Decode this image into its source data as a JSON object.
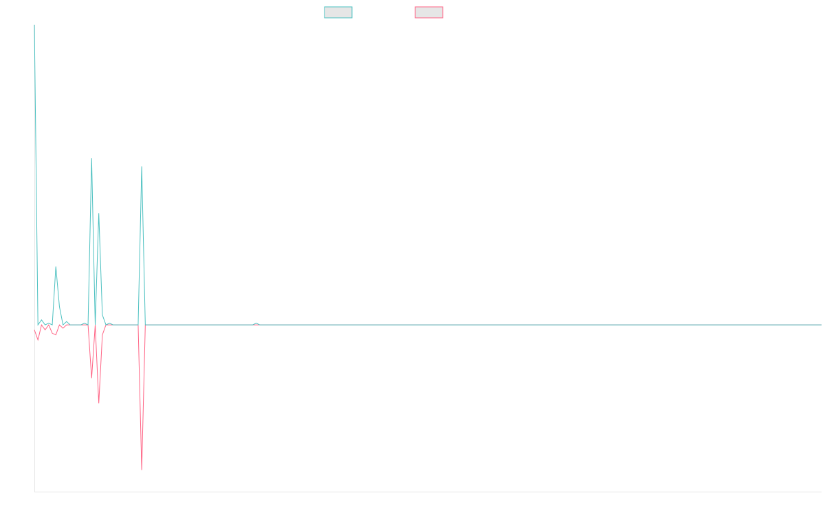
{
  "chart_data": {
    "type": "line",
    "legend": "top-center",
    "grid": false,
    "colors": {
      "series_a": "#4bc0c0",
      "series_b": "#ff6384",
      "axis": "#e6e6e6"
    },
    "ylim": [
      -1.0,
      1.8
    ],
    "x": [
      0,
      1,
      2,
      3,
      4,
      5,
      6,
      7,
      8,
      9,
      10,
      11,
      12,
      13,
      14,
      15,
      16,
      17,
      18,
      19,
      20,
      21,
      22,
      23,
      24,
      25,
      26,
      27,
      28,
      29,
      30,
      31,
      32,
      33,
      34,
      35,
      36,
      37,
      38,
      39,
      40,
      41,
      42,
      43,
      44,
      45,
      46,
      47,
      48,
      49,
      50,
      51,
      52,
      53,
      54,
      55,
      56,
      57,
      58,
      59,
      60,
      61,
      62,
      63,
      64,
      65,
      66,
      67,
      68,
      69,
      70,
      71,
      72,
      73,
      74,
      75,
      76,
      77,
      78,
      79,
      80,
      81,
      82,
      83,
      84,
      85,
      86,
      87,
      88,
      89,
      90,
      91,
      92,
      93,
      94,
      95,
      96,
      97,
      98,
      99,
      100,
      101,
      102,
      103,
      104,
      105,
      106,
      107,
      108,
      109,
      110,
      111,
      112,
      113,
      114,
      115,
      116,
      117,
      118,
      119,
      120,
      121,
      122,
      123,
      124,
      125,
      126,
      127,
      128,
      129,
      130,
      131,
      132,
      133,
      134,
      135,
      136,
      137,
      138,
      139,
      140,
      141,
      142,
      143,
      144,
      145,
      146,
      147,
      148,
      149,
      150,
      151,
      152,
      153,
      154,
      155,
      156,
      157,
      158,
      159,
      160,
      161,
      162,
      163,
      164,
      165,
      166,
      167,
      168,
      169,
      170,
      171,
      172,
      173,
      174,
      175,
      176,
      177,
      178,
      179,
      180,
      181,
      182,
      183,
      184,
      185,
      186,
      187,
      188,
      189,
      190,
      191,
      192,
      193,
      194,
      195,
      196,
      197,
      198,
      199,
      200,
      201,
      202,
      203,
      204,
      205,
      206,
      207,
      208,
      209,
      210,
      211,
      212,
      213,
      214,
      215,
      216,
      217,
      218,
      219,
      220
    ],
    "series": [
      {
        "color": "#4bc0c0",
        "values": [
          1.8,
          0.0,
          0.03,
          0.0,
          0.01,
          0.0,
          0.35,
          0.11,
          0.0,
          0.02,
          0.0,
          0.0,
          0.0,
          0.0,
          0.01,
          0.0,
          1.0,
          0.0,
          0.67,
          0.06,
          0.0,
          0.01,
          0.0,
          0.0,
          0.0,
          0.0,
          0.0,
          0.0,
          0.0,
          0.0,
          0.95,
          0.0,
          0.0,
          0.0,
          0.0,
          0.0,
          0.0,
          0.0,
          0.0,
          0.0,
          0.0,
          0.0,
          0.0,
          0.0,
          0.0,
          0.0,
          0.0,
          0.0,
          0.0,
          0.0,
          0.0,
          0.0,
          0.0,
          0.0,
          0.0,
          0.0,
          0.0,
          0.0,
          0.0,
          0.0,
          0.0,
          0.0,
          0.01,
          0.0,
          0.0,
          0.0,
          0.0,
          0.0,
          0.0,
          0.0,
          0.0,
          0.0,
          0.0,
          0.0,
          0.0,
          0.0,
          0.0,
          0.0,
          0.0,
          0.0,
          0.0,
          0.0,
          0.0,
          0.0,
          0.0,
          0.0,
          0.0,
          0.0,
          0.0,
          0.0,
          0.0,
          0.0,
          0.0,
          0.0,
          0.0,
          0.0,
          0.0,
          0.0,
          0.0,
          0.0,
          0.0,
          0.0,
          0.0,
          0.0,
          0.0,
          0.0,
          0.0,
          0.0,
          0.0,
          0.0,
          0.0,
          0.0,
          0.0,
          0.0,
          0.0,
          0.0,
          0.0,
          0.0,
          0.0,
          0.0,
          0.0,
          0.0,
          0.0,
          0.0,
          0.0,
          0.0,
          0.0,
          0.0,
          0.0,
          0.0,
          0.0,
          0.0,
          0.0,
          0.0,
          0.0,
          0.0,
          0.0,
          0.0,
          0.0,
          0.0,
          0.0,
          0.0,
          0.0,
          0.0,
          0.0,
          0.0,
          0.0,
          0.0,
          0.0,
          0.0,
          0.0,
          0.0,
          0.0,
          0.0,
          0.0,
          0.0,
          0.0,
          0.0,
          0.0,
          0.0,
          0.0,
          0.0,
          0.0,
          0.0,
          0.0,
          0.0,
          0.0,
          0.0,
          0.0,
          0.0,
          0.0,
          0.0,
          0.0,
          0.0,
          0.0,
          0.0,
          0.0,
          0.0,
          0.0,
          0.0,
          0.0,
          0.0,
          0.0,
          0.0,
          0.0,
          0.0,
          0.0,
          0.0,
          0.0,
          0.0,
          0.0,
          0.0,
          0.0,
          0.0,
          0.0,
          0.0,
          0.0,
          0.0,
          0.0,
          0.0,
          0.0,
          0.0,
          0.0,
          0.0,
          0.0,
          0.0,
          0.0,
          0.0,
          0.0,
          0.0,
          0.0,
          0.0,
          0.0,
          0.0,
          0.0,
          0.0,
          0.0,
          0.0,
          0.0,
          0.0,
          0.0
        ]
      },
      {
        "color": "#ff6384",
        "values": [
          -0.03,
          -0.09,
          0.0,
          -0.03,
          0.0,
          -0.05,
          -0.06,
          0.0,
          -0.02,
          0.0,
          0.0,
          0.0,
          0.0,
          0.0,
          0.0,
          0.0,
          -0.32,
          0.0,
          -0.47,
          -0.06,
          0.0,
          0.0,
          0.0,
          0.0,
          0.0,
          0.0,
          0.0,
          0.0,
          0.0,
          0.0,
          -0.87,
          0.0,
          0.0,
          0.0,
          0.0,
          0.0,
          0.0,
          0.0,
          0.0,
          0.0,
          0.0,
          0.0,
          0.0,
          0.0,
          0.0,
          0.0,
          0.0,
          0.0,
          0.0,
          0.0,
          0.0,
          0.0,
          0.0,
          0.0,
          0.0,
          0.0,
          0.0,
          0.0,
          0.0,
          0.0,
          0.0,
          0.0,
          0.0,
          0.0,
          0.0,
          0.0,
          0.0,
          0.0,
          0.0,
          0.0,
          0.0,
          0.0,
          0.0,
          0.0,
          0.0,
          0.0,
          0.0,
          0.0,
          0.0,
          0.0,
          0.0,
          0.0,
          0.0,
          0.0,
          0.0,
          0.0,
          0.0,
          0.0,
          0.0,
          0.0,
          0.0,
          0.0,
          0.0,
          0.0,
          0.0,
          0.0,
          0.0,
          0.0,
          0.0,
          0.0,
          0.0,
          0.0,
          0.0,
          0.0,
          0.0,
          0.0,
          0.0,
          0.0,
          0.0,
          0.0,
          0.0,
          0.0,
          0.0,
          0.0,
          0.0,
          0.0,
          0.0,
          0.0,
          0.0,
          0.0,
          0.0,
          0.0,
          0.0,
          0.0,
          0.0,
          0.0,
          0.0,
          0.0,
          0.0,
          0.0,
          0.0,
          0.0,
          0.0,
          0.0,
          0.0,
          0.0,
          0.0,
          0.0,
          0.0,
          0.0,
          0.0,
          0.0,
          0.0,
          0.0,
          0.0,
          0.0,
          0.0,
          0.0,
          0.0,
          0.0,
          0.0,
          0.0,
          0.0,
          0.0,
          0.0,
          0.0,
          0.0,
          0.0,
          0.0,
          0.0,
          0.0,
          0.0,
          0.0,
          0.0,
          0.0,
          0.0,
          0.0,
          0.0,
          0.0,
          0.0,
          0.0,
          0.0,
          0.0,
          0.0,
          0.0,
          0.0,
          0.0,
          0.0,
          0.0,
          0.0,
          0.0,
          0.0,
          0.0,
          0.0,
          0.0,
          0.0,
          0.0,
          0.0,
          0.0,
          0.0,
          0.0,
          0.0,
          0.0,
          0.0,
          0.0,
          0.0,
          0.0,
          0.0,
          0.0,
          0.0,
          0.0,
          0.0,
          0.0,
          0.0,
          0.0,
          0.0,
          0.0,
          0.0,
          0.0,
          0.0,
          0.0,
          0.0,
          0.0,
          0.0,
          0.0,
          0.0,
          0.0,
          0.0,
          0.0,
          0.0,
          0.0
        ]
      }
    ]
  }
}
